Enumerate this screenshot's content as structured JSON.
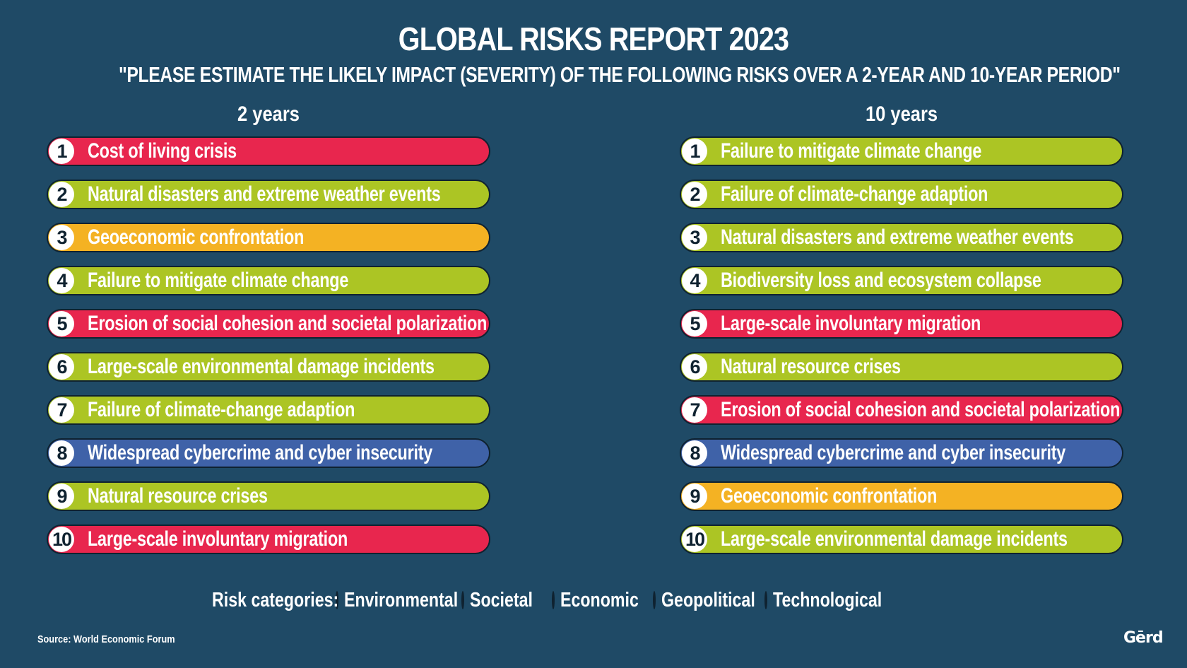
{
  "title": "GLOBAL RISKS REPORT 2023",
  "subtitle": "\"PLEASE ESTIMATE THE LIKELY IMPACT (SEVERITY) OF THE FOLLOWING RISKS OVER A 2-YEAR AND 10-YEAR PERIOD\"",
  "colors": {
    "Environmental": "#acc524",
    "Societal": "#e8264e",
    "Economic": "#a3a3a3",
    "Geopolitical": "#f4b223",
    "Technological": "#3f62a8"
  },
  "columns": [
    {
      "heading": "2 years",
      "items": [
        {
          "rank": "1",
          "label": "Cost of living crisis",
          "category": "Societal"
        },
        {
          "rank": "2",
          "label": "Natural disasters and extreme weather events",
          "category": "Environmental"
        },
        {
          "rank": "3",
          "label": "Geoeconomic confrontation",
          "category": "Geopolitical"
        },
        {
          "rank": "4",
          "label": "Failure to mitigate climate change",
          "category": "Environmental"
        },
        {
          "rank": "5",
          "label": "Erosion of social cohesion and societal polarization",
          "category": "Societal"
        },
        {
          "rank": "6",
          "label": "Large-scale environmental damage incidents",
          "category": "Environmental"
        },
        {
          "rank": "7",
          "label": "Failure of climate-change adaption",
          "category": "Environmental"
        },
        {
          "rank": "8",
          "label": "Widespread cybercrime and cyber insecurity",
          "category": "Technological"
        },
        {
          "rank": "9",
          "label": "Natural resource crises",
          "category": "Environmental"
        },
        {
          "rank": "10",
          "label": "Large-scale involuntary migration",
          "category": "Societal"
        }
      ]
    },
    {
      "heading": "10 years",
      "items": [
        {
          "rank": "1",
          "label": "Failure to mitigate climate change",
          "category": "Environmental"
        },
        {
          "rank": "2",
          "label": "Failure of climate-change adaption",
          "category": "Environmental"
        },
        {
          "rank": "3",
          "label": "Natural disasters and extreme weather events",
          "category": "Environmental"
        },
        {
          "rank": "4",
          "label": "Biodiversity loss and ecosystem collapse",
          "category": "Environmental"
        },
        {
          "rank": "5",
          "label": "Large-scale involuntary migration",
          "category": "Societal"
        },
        {
          "rank": "6",
          "label": "Natural resource crises",
          "category": "Environmental"
        },
        {
          "rank": "7",
          "label": "Erosion of social cohesion and societal polarization",
          "category": "Societal"
        },
        {
          "rank": "8",
          "label": "Widespread cybercrime and cyber insecurity",
          "category": "Technological"
        },
        {
          "rank": "9",
          "label": "Geoeconomic confrontation",
          "category": "Geopolitical"
        },
        {
          "rank": "10",
          "label": "Large-scale environmental damage incidents",
          "category": "Environmental"
        }
      ]
    }
  ],
  "legend": {
    "title": "Risk categories:",
    "items": [
      "Environmental",
      "Societal",
      "Economic",
      "Geopolitical",
      "Technological"
    ]
  },
  "source": "Source: World Economic Forum",
  "logo": "Gērd"
}
